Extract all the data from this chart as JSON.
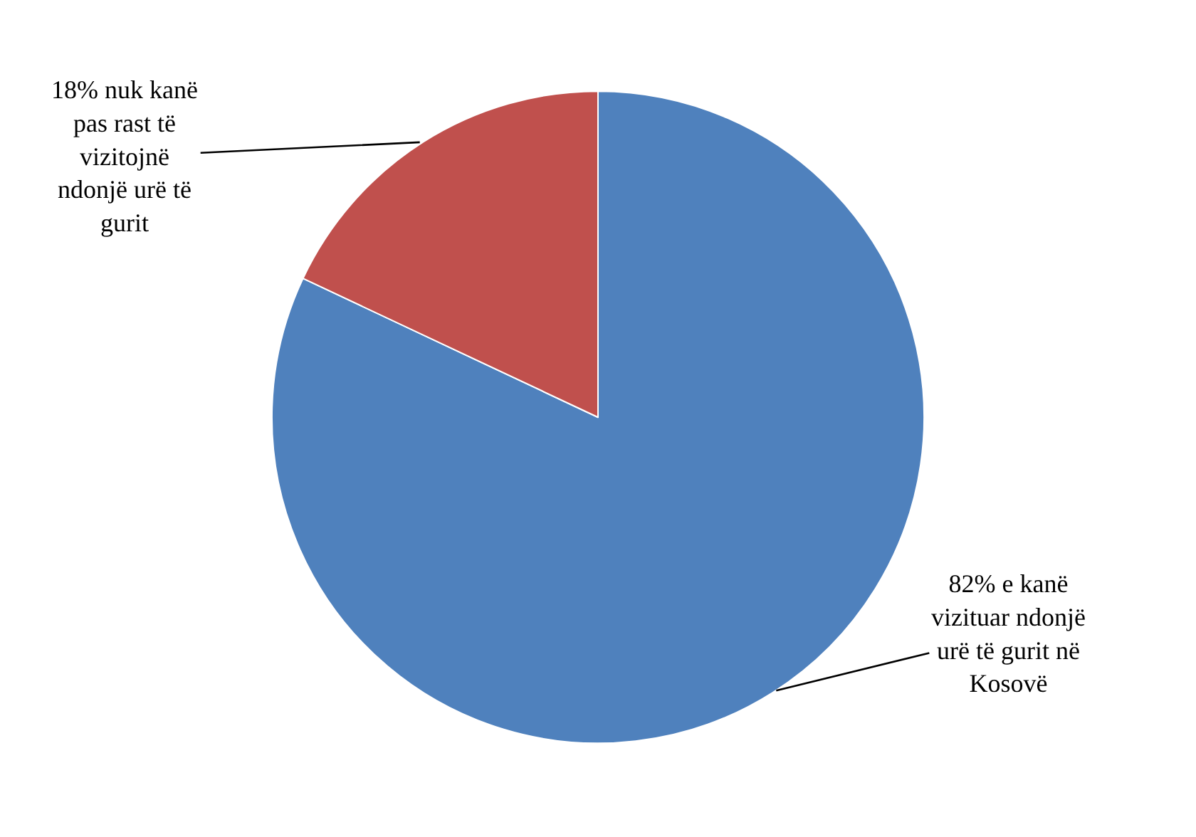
{
  "chart_data": {
    "type": "pie",
    "categories": [
      "82% e kanë\nvizituar ndonjë\nurë të gurit në\nKosovë",
      "18% nuk kanë\npas rast të\nvizitojnë\nndonjë urë të\ngurit"
    ],
    "values": [
      82,
      18
    ],
    "colors": [
      "#4f81bd",
      "#c0504d"
    ],
    "legend": false
  }
}
